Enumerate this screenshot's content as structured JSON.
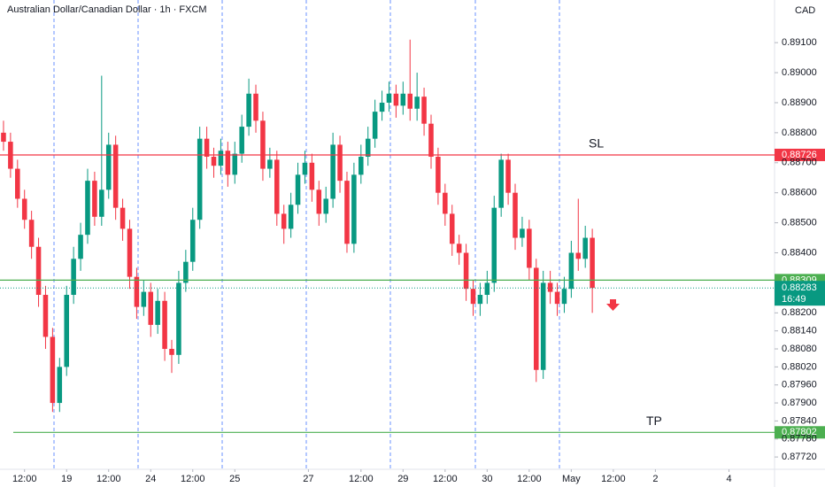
{
  "chart_data": {
    "type": "candlestick",
    "title": "Australian Dollar/Canadian Dollar · 1h · FXCM",
    "currency": "CAD",
    "x": [
      1,
      3,
      5,
      7,
      9,
      11,
      13,
      15,
      17,
      19,
      21,
      23,
      25,
      27,
      29,
      31,
      33,
      35,
      37,
      39,
      41,
      43,
      45,
      47,
      49,
      51,
      53,
      55,
      57,
      59,
      61,
      63,
      65,
      67,
      69,
      71,
      73,
      75,
      77,
      79,
      81,
      83,
      85,
      87,
      89,
      91,
      93,
      95,
      97,
      99,
      101,
      103,
      105,
      107,
      109,
      111,
      113,
      115,
      117,
      119,
      121,
      123,
      125,
      127,
      129,
      131,
      133,
      135,
      137,
      139,
      141,
      143,
      145,
      147,
      149,
      151,
      153,
      155,
      157,
      159,
      161,
      163,
      165,
      167,
      169
    ],
    "open": [
      0.888,
      0.8877,
      0.8868,
      0.8858,
      0.8851,
      0.8842,
      0.8826,
      0.8812,
      0.879,
      0.8802,
      0.8826,
      0.8838,
      0.8846,
      0.8864,
      0.8852,
      0.8861,
      0.8876,
      0.8855,
      0.8848,
      0.8832,
      0.8822,
      0.8827,
      0.8816,
      0.8824,
      0.8808,
      0.8806,
      0.883,
      0.8837,
      0.8851,
      0.8878,
      0.8872,
      0.8869,
      0.8874,
      0.8866,
      0.8873,
      0.8882,
      0.8893,
      0.8884,
      0.8868,
      0.8871,
      0.8853,
      0.8848,
      0.8856,
      0.8866,
      0.887,
      0.8861,
      0.8853,
      0.8858,
      0.8876,
      0.8864,
      0.8843,
      0.8866,
      0.8872,
      0.8878,
      0.8887,
      0.889,
      0.8893,
      0.8889,
      0.8893,
      0.8888,
      0.8892,
      0.8883,
      0.8872,
      0.886,
      0.8853,
      0.8843,
      0.884,
      0.8828,
      0.8823,
      0.8826,
      0.883,
      0.8855,
      0.8871,
      0.886,
      0.8845,
      0.8848,
      0.8835,
      0.8801,
      0.883,
      0.8827,
      0.8823,
      0.8828,
      0.884,
      0.8838,
      0.8845
    ],
    "high": [
      0.8884,
      0.888,
      0.8871,
      0.8861,
      0.8854,
      0.8845,
      0.8829,
      0.8815,
      0.8805,
      0.8829,
      0.8842,
      0.885,
      0.8868,
      0.8867,
      0.8899,
      0.888,
      0.8879,
      0.8858,
      0.8851,
      0.8835,
      0.8831,
      0.883,
      0.8828,
      0.8827,
      0.8811,
      0.8834,
      0.8841,
      0.8855,
      0.8882,
      0.8882,
      0.8875,
      0.8878,
      0.8877,
      0.8877,
      0.8886,
      0.8898,
      0.8896,
      0.8887,
      0.8875,
      0.8874,
      0.8856,
      0.886,
      0.887,
      0.8874,
      0.8873,
      0.8864,
      0.8862,
      0.888,
      0.8879,
      0.8867,
      0.887,
      0.8876,
      0.8882,
      0.8891,
      0.8894,
      0.8897,
      0.8896,
      0.8897,
      0.8911,
      0.89,
      0.8895,
      0.8886,
      0.8875,
      0.8863,
      0.8856,
      0.8846,
      0.8843,
      0.8831,
      0.883,
      0.8834,
      0.8859,
      0.8873,
      0.8873,
      0.8863,
      0.8852,
      0.8851,
      0.8838,
      0.8834,
      0.8834,
      0.883,
      0.8832,
      0.8844,
      0.8858,
      0.8849,
      0.8848
    ],
    "low": [
      0.8874,
      0.8865,
      0.8855,
      0.8848,
      0.8838,
      0.8822,
      0.8808,
      0.8787,
      0.8787,
      0.8799,
      0.8823,
      0.8834,
      0.8843,
      0.8849,
      0.8849,
      0.8858,
      0.8851,
      0.8844,
      0.8828,
      0.8818,
      0.8819,
      0.8812,
      0.8813,
      0.8804,
      0.88,
      0.8803,
      0.8827,
      0.8834,
      0.8848,
      0.8868,
      0.8865,
      0.8866,
      0.8862,
      0.8863,
      0.887,
      0.8879,
      0.888,
      0.8864,
      0.8865,
      0.8849,
      0.8843,
      0.8845,
      0.8853,
      0.8863,
      0.8857,
      0.8849,
      0.885,
      0.8855,
      0.886,
      0.884,
      0.884,
      0.8863,
      0.8869,
      0.8875,
      0.8884,
      0.8887,
      0.8885,
      0.8886,
      0.8884,
      0.8884,
      0.8879,
      0.8868,
      0.8856,
      0.8849,
      0.8839,
      0.8836,
      0.8824,
      0.8819,
      0.8819,
      0.8823,
      0.8827,
      0.8852,
      0.8856,
      0.8841,
      0.8842,
      0.8831,
      0.8797,
      0.8798,
      0.8823,
      0.8819,
      0.882,
      0.8825,
      0.8834,
      0.8835,
      0.882
    ],
    "close": [
      0.8877,
      0.8868,
      0.8858,
      0.8851,
      0.8842,
      0.8826,
      0.8812,
      0.879,
      0.8802,
      0.8826,
      0.8838,
      0.8846,
      0.8864,
      0.8852,
      0.8861,
      0.8876,
      0.8855,
      0.8848,
      0.8832,
      0.8822,
      0.8827,
      0.8816,
      0.8824,
      0.8808,
      0.8806,
      0.883,
      0.8837,
      0.8851,
      0.8878,
      0.8872,
      0.8869,
      0.8874,
      0.8866,
      0.8873,
      0.8882,
      0.8893,
      0.8884,
      0.8868,
      0.8871,
      0.8853,
      0.8848,
      0.8856,
      0.8866,
      0.887,
      0.8861,
      0.8853,
      0.8858,
      0.8876,
      0.8864,
      0.8843,
      0.8866,
      0.8872,
      0.8878,
      0.8887,
      0.889,
      0.8893,
      0.8889,
      0.8893,
      0.8888,
      0.8892,
      0.8883,
      0.8872,
      0.886,
      0.8853,
      0.8843,
      0.884,
      0.8828,
      0.8823,
      0.8826,
      0.883,
      0.8855,
      0.8871,
      0.886,
      0.8845,
      0.8848,
      0.8835,
      0.8801,
      0.883,
      0.8827,
      0.8823,
      0.8828,
      0.884,
      0.8838,
      0.8845,
      0.88283
    ],
    "up_color": "#089981",
    "down_color": "#f23645",
    "xlim": [
      0,
      221
    ],
    "xticks": [
      {
        "value": 7,
        "label": "12:00"
      },
      19,
      {
        "value": 31,
        "label": "12:00"
      },
      24,
      {
        "value": 55,
        "label": "12:00"
      },
      25,
      27,
      {
        "value": 103,
        "label": "12:00"
      },
      29,
      {
        "value": 127,
        "label": "12:00"
      },
      30,
      {
        "value": 151,
        "label": "12:00"
      },
      {
        "value": 163,
        "label": "May"
      },
      {
        "value": 175,
        "label": "12:00"
      },
      2,
      4
    ],
    "xtick_positions": [
      7,
      19,
      31,
      43,
      55,
      67,
      88,
      103,
      115,
      127,
      139,
      151,
      163,
      175,
      187,
      208
    ],
    "ylim": [
      0.87679,
      0.89242
    ],
    "yticks": [
      {
        "value": 0.891,
        "label": "0.89100"
      },
      {
        "value": 0.89,
        "label": "0.89000"
      },
      {
        "value": 0.889,
        "label": "0.88900"
      },
      {
        "value": 0.888,
        "label": "0.88800"
      },
      {
        "value": 0.887,
        "label": "0.88700"
      },
      {
        "value": 0.886,
        "label": "0.88600"
      },
      {
        "value": 0.885,
        "label": "0.88500"
      },
      {
        "value": 0.884,
        "label": "0.88400"
      },
      {
        "value": 0.882,
        "label": "0.88200"
      },
      {
        "value": 0.8814,
        "label": "0.88140"
      },
      {
        "value": 0.8808,
        "label": "0.88080"
      },
      {
        "value": 0.8802,
        "label": "0.88020"
      },
      {
        "value": 0.8796,
        "label": "0.87960"
      },
      {
        "value": 0.879,
        "label": "0.87900"
      },
      {
        "value": 0.8784,
        "label": "0.87840"
      },
      {
        "value": 0.8778,
        "label": "0.87780"
      },
      {
        "value": 0.8772,
        "label": "0.87720"
      }
    ],
    "grid": false,
    "levels": [
      {
        "name": "SL",
        "value": 0.88726,
        "color": "#f23645"
      },
      {
        "value": 0.88309,
        "color": "#4caf50"
      },
      {
        "name": "TP",
        "value": 0.87802,
        "color": "#4caf50"
      }
    ],
    "countdown": "16:49"
  }
}
